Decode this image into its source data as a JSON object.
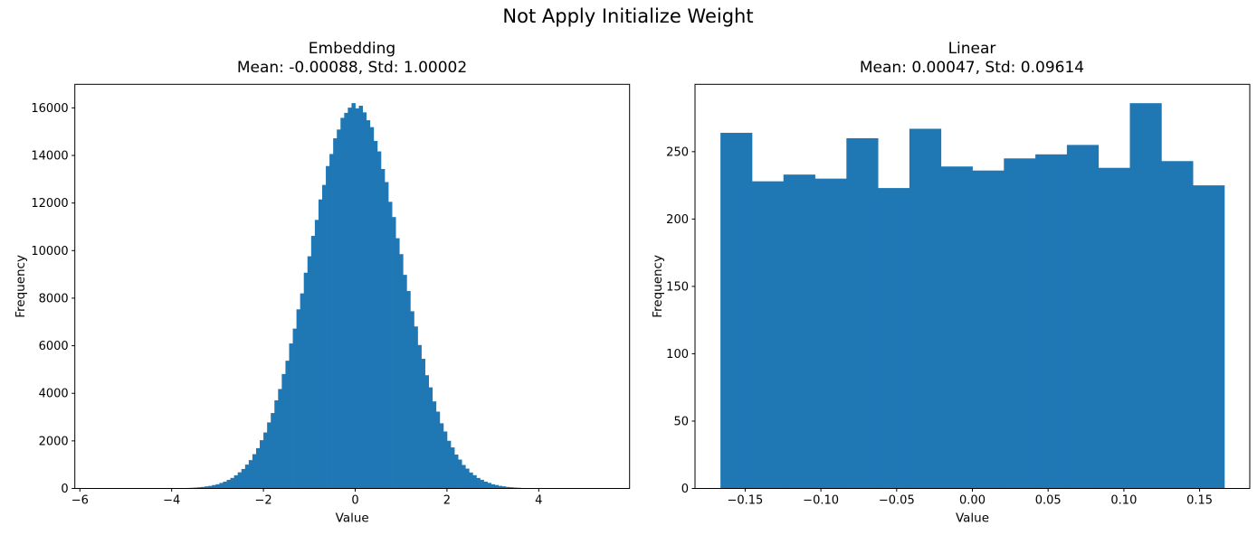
{
  "figure": {
    "suptitle": "Not Apply Initialize Weight",
    "background_color": "#ffffff",
    "bar_color": "#1f77b4",
    "axis_color": "#000000"
  },
  "chart_data": [
    {
      "type": "bar",
      "subtype": "histogram",
      "title": "Embedding",
      "subtitle": "Mean: -0.00088, Std: 1.00002",
      "mean": -0.00088,
      "std": 1.00002,
      "xlabel": "Value",
      "ylabel": "Frequency",
      "xlim": [
        -6.11,
        5.98
      ],
      "ylim": [
        0,
        16990
      ],
      "grid": false,
      "legend": "none",
      "color": "#1f77b4",
      "xtick_values": [
        -6,
        -4,
        -2,
        0,
        2,
        4
      ],
      "xtick_labels": [
        "−6",
        "−4",
        "−2",
        "0",
        "2",
        "4"
      ],
      "ytick_values": [
        0,
        2000,
        4000,
        6000,
        8000,
        10000,
        12000,
        14000,
        16000
      ],
      "ytick_labels": [
        "0",
        "2000",
        "4000",
        "6000",
        "8000",
        "10000",
        "12000",
        "14000",
        "16000"
      ],
      "bins": {
        "start": -4.4,
        "width": 0.08
      },
      "values": [
        1,
        2,
        2,
        3,
        5,
        6,
        9,
        13,
        15,
        22,
        28,
        37,
        51,
        64,
        87,
        108,
        143,
        177,
        232,
        286,
        362,
        443,
        552,
        678,
        818,
        1002,
        1191,
        1442,
        1695,
        2029,
        2354,
        2777,
        3170,
        3705,
        4180,
        4810,
        5370,
        6095,
        6720,
        7530,
        8200,
        9070,
        9760,
        10620,
        11290,
        12150,
        12760,
        13555,
        14060,
        14720,
        15090,
        15580,
        15790,
        16010,
        16200,
        15980,
        16090,
        15810,
        15480,
        15190,
        14610,
        14170,
        13430,
        12880,
        12050,
        11410,
        10520,
        9850,
        8980,
        8300,
        7450,
        6810,
        6030,
        5450,
        4760,
        4250,
        3660,
        3230,
        2740,
        2395,
        2005,
        1725,
        1425,
        1215,
        988,
        835,
        670,
        558,
        442,
        365,
        284,
        234,
        177,
        145,
        108,
        88,
        64,
        52,
        38,
        30,
        21,
        17,
        12,
        9,
        7,
        5,
        3,
        2,
        1,
        1
      ]
    },
    {
      "type": "bar",
      "subtype": "histogram",
      "title": "Linear",
      "subtitle": "Mean: 0.00047, Std: 0.09614",
      "mean": 0.00047,
      "std": 0.09614,
      "xlabel": "Value",
      "ylabel": "Frequency",
      "xlim": [
        -0.1831,
        0.1831
      ],
      "ylim": [
        0,
        300
      ],
      "grid": false,
      "legend": "none",
      "color": "#1f77b4",
      "xtick_values": [
        -0.15,
        -0.1,
        -0.05,
        0.0,
        0.05,
        0.1,
        0.15
      ],
      "xtick_labels": [
        "−0.15",
        "−0.10",
        "−0.05",
        "0.00",
        "0.05",
        "0.10",
        "0.15"
      ],
      "ytick_values": [
        0,
        50,
        100,
        150,
        200,
        250
      ],
      "ytick_labels": [
        "0",
        "50",
        "100",
        "150",
        "200",
        "250"
      ],
      "bins": {
        "start": -0.1663,
        "width": 0.020788
      },
      "values": [
        264,
        228,
        233,
        230,
        260,
        223,
        267,
        239,
        236,
        245,
        248,
        255,
        238,
        286,
        243,
        225
      ]
    }
  ]
}
